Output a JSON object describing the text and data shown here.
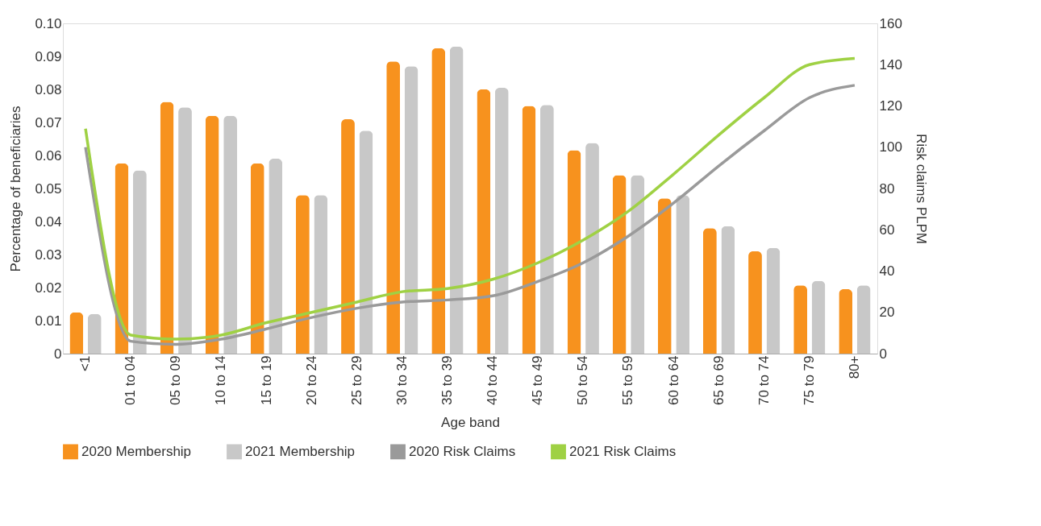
{
  "chart_data": {
    "type": "bar",
    "xlabel": "Age band",
    "ylabel": "Percentage of beneficiaries",
    "y2label": "Risk claims PLPM",
    "categories": [
      "<1",
      "01 to 04",
      "05 to 09",
      "10 to 14",
      "15 to 19",
      "20 to 24",
      "25 to 29",
      "30 to 34",
      "35 to 39",
      "40 to 44",
      "45 to 49",
      "50 to 54",
      "55 to 59",
      "60 to 64",
      "65 to 69",
      "70 to 74",
      "75 to 79",
      "80+"
    ],
    "series": [
      {
        "name": "2020 Membership",
        "color": "#f7921e",
        "values": [
          0.0125,
          0.0576,
          0.0762,
          0.072,
          0.0576,
          0.048,
          0.071,
          0.0885,
          0.0925,
          0.08,
          0.075,
          0.0616,
          0.054,
          0.047,
          0.038,
          0.031,
          0.0207,
          0.0195
        ]
      },
      {
        "name": "2021 Membership",
        "color": "#c8c8c8",
        "values": [
          0.012,
          0.0555,
          0.0746,
          0.072,
          0.059,
          0.048,
          0.0675,
          0.087,
          0.093,
          0.0805,
          0.0753,
          0.0638,
          0.054,
          0.048,
          0.0386,
          0.032,
          0.022,
          0.0207
        ]
      },
      {
        "name": "2020 Risk Claims",
        "type": "line",
        "axis": "y2",
        "color": "#9a9a9a",
        "values": [
          100,
          6,
          4.5,
          7,
          12,
          17.5,
          22,
          25,
          26,
          28,
          35,
          44,
          57,
          73,
          91,
          108,
          124,
          130
        ]
      },
      {
        "name": "2021 Risk Claims",
        "type": "line",
        "axis": "y2",
        "color": "#9fd144",
        "values": [
          109,
          9,
          7,
          9,
          15,
          20,
          25,
          30,
          31.5,
          36,
          44,
          55,
          69,
          87,
          106,
          124,
          140,
          143
        ]
      }
    ],
    "ylim": [
      0,
      0.1
    ],
    "yticks": [
      {
        "value": 0,
        "label": "0"
      },
      0.01,
      0.02,
      0.03,
      0.04,
      0.05,
      0.06,
      0.07,
      0.08,
      0.09,
      {
        "value": 0.1,
        "label": "0.10"
      }
    ],
    "y2lim": [
      0,
      160
    ],
    "y2ticks": [
      0,
      20,
      40,
      60,
      80,
      100,
      120,
      140,
      160
    ],
    "grid": false,
    "legend": "bottom",
    "line_style": "solid",
    "marker": "none"
  }
}
